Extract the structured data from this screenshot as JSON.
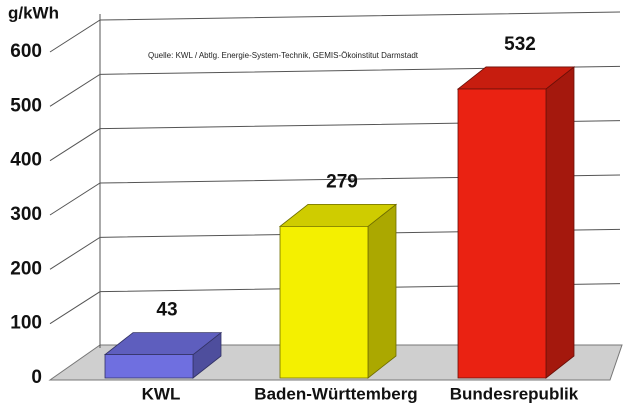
{
  "chart_data": {
    "type": "bar3d",
    "ylabel": "g/kWh",
    "annotation": "Quelle: KWL / Abtlg. Energie-System-Technik, GEMIS-Ökoinstitut Darmstadt",
    "categories": [
      "KWL",
      "Baden-Württemberg",
      "Bundesrepublik"
    ],
    "values": [
      43,
      279,
      532
    ],
    "colors": [
      "#6f6fe0",
      "#f4f000",
      "#ea2212"
    ],
    "ylim": [
      0,
      600
    ],
    "yticks": [
      0,
      100,
      200,
      300,
      400,
      500,
      600
    ],
    "grid": true
  }
}
